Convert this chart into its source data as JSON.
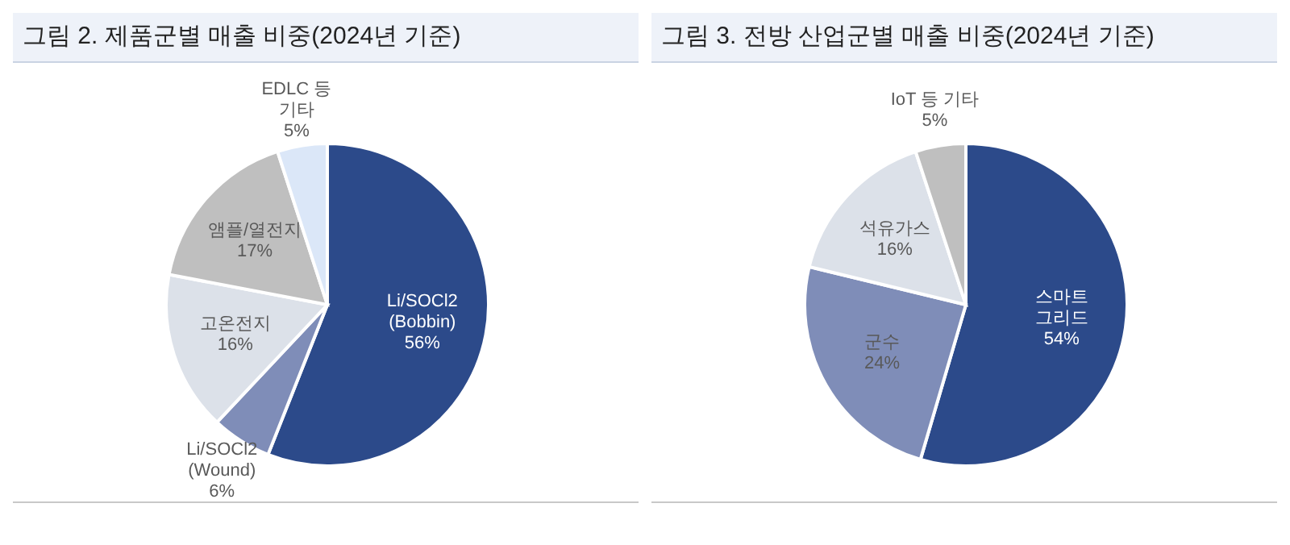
{
  "chart_data": [
    {
      "type": "pie",
      "title": "그림 2. 제품군별 매출 비중(2024년 기준)",
      "categories": [
        "Li/SOCl2\n(Bobbin)",
        "Li/SOCl2\n(Wound)",
        "고온전지",
        "앰플/열전지",
        "EDLC 등\n기타"
      ],
      "values": [
        56,
        6,
        16,
        17,
        5
      ],
      "colors": [
        "#2c4a8a",
        "#7f8db8",
        "#dce1e9",
        "#bfbfbf",
        "#dbe7f8"
      ],
      "value_labels": [
        "56%",
        "6%",
        "16%",
        "17%",
        "5%"
      ],
      "legend": false
    },
    {
      "type": "pie",
      "title": "그림 3. 전방 산업군별 매출 비중(2024년 기준)",
      "categories": [
        "스마트\n그리드",
        "군수",
        "석유가스",
        "IoT 등 기타"
      ],
      "values": [
        54,
        24,
        16,
        5
      ],
      "colors": [
        "#2c4a8a",
        "#7f8db8",
        "#dce1e9",
        "#bfbfbf"
      ],
      "value_labels": [
        "54%",
        "24%",
        "16%",
        "5%"
      ],
      "legend": false
    }
  ]
}
